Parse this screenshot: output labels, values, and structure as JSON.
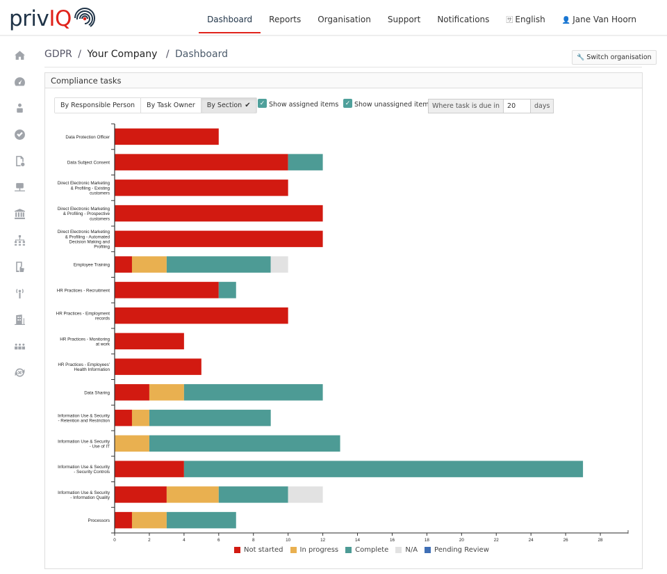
{
  "app": {
    "logo_text_1": "priv",
    "logo_text_2": "IQ"
  },
  "nav": {
    "items": [
      {
        "label": "Dashboard",
        "active": true
      },
      {
        "label": "Reports"
      },
      {
        "label": "Organisation"
      },
      {
        "label": "Support"
      },
      {
        "label": "Notifications"
      }
    ],
    "language": "English",
    "language_icon": "language-icon",
    "user": "Jane Van Hoorn",
    "user_icon": "user-icon"
  },
  "sidebar": {
    "items": [
      {
        "icon": "home-icon"
      },
      {
        "icon": "dashboard-gauge-icon"
      },
      {
        "icon": "person-id-icon"
      },
      {
        "icon": "check-circle-icon"
      },
      {
        "icon": "document-settings-icon"
      },
      {
        "icon": "network-server-icon"
      },
      {
        "icon": "institution-icon"
      },
      {
        "icon": "org-chart-icon"
      },
      {
        "icon": "tablet-touch-icon"
      },
      {
        "icon": "broadcast-tower-icon"
      },
      {
        "icon": "building-icon"
      },
      {
        "icon": "group-icon"
      },
      {
        "icon": "exchange-icon"
      }
    ]
  },
  "breadcrumb": {
    "root": "GDPR",
    "company": "Your Company",
    "current": "Dashboard",
    "separator": "/"
  },
  "switch_button": {
    "label": "Switch organisation",
    "icon": "wrench-icon"
  },
  "panel": {
    "title": "Compliance tasks",
    "group_by": {
      "options": [
        "By Responsible Person",
        "By Task Owner",
        "By Section"
      ],
      "selected": "By Section",
      "check_icon": "✔"
    },
    "show_assigned": {
      "label": "Show assigned items",
      "checked": true
    },
    "show_unassigned": {
      "label": "Show unassigned items",
      "checked": true
    },
    "due_filter": {
      "prefix": "Where task is due in",
      "value": "20",
      "suffix": "days"
    }
  },
  "chart_data": {
    "type": "bar",
    "orientation": "horizontal",
    "stacked": true,
    "title": "",
    "xlabel": "",
    "ylabel": "",
    "xlim": [
      0,
      29.6
    ],
    "x_ticks": [
      0,
      2,
      4,
      6,
      8,
      10,
      12,
      14,
      16,
      18,
      20,
      22,
      24,
      26,
      28
    ],
    "grid": false,
    "legend_position": "bottom",
    "categories": [
      "Data Protection Officer",
      "Data Subject Consent",
      "Direct Electronic Marketing & Profiling - Existing customers",
      "Direct Electronic Marketing & Profiling - Prospective customers",
      "Direct Electronic Marketing & Profiling - Automated Decision Making and Profiling",
      "Employee Training",
      "HR Practices - Recruitment",
      "HR Practices - Employment records",
      "HR Practices - Monitoring at work",
      "HR Practices - Employees' Health Information",
      "Data Sharing",
      "Information Use & Security - Retention and Restriction",
      "Information Use & Security - Use of IT",
      "Information Use & Security - Security Controls",
      "Information Use & Security - Information Quality",
      "Processors"
    ],
    "category_lines": [
      [
        "Data Protection Officer"
      ],
      [
        "Data Subject Consent"
      ],
      [
        "Direct Electronic Marketing",
        "& Profiling - Existing",
        "customers"
      ],
      [
        "Direct Electronic Marketing",
        "& Profiling - Prospective",
        "customers"
      ],
      [
        "Direct Electronic Marketing",
        "& Profiling - Automated",
        "Decision Making and",
        "Profiling"
      ],
      [
        "Employee Training"
      ],
      [
        "HR Practices - Recruitment"
      ],
      [
        "HR Practices - Employment",
        "records"
      ],
      [
        "HR Practices - Monitoring",
        "at work"
      ],
      [
        "HR Practices - Employees'",
        "Health Information"
      ],
      [
        "Data Sharing"
      ],
      [
        "Information Use & Security",
        "- Retention and Restriction"
      ],
      [
        "Information Use & Security",
        "- Use of IT"
      ],
      [
        "Information Use & Security",
        "- Security Controls"
      ],
      [
        "Information Use & Security",
        "- Information Quality"
      ],
      [
        "Processors"
      ]
    ],
    "series": [
      {
        "name": "Not started",
        "color": "#d21a11",
        "values": [
          6,
          10,
          10,
          12,
          12,
          1,
          6,
          10,
          4,
          5,
          2,
          1,
          0,
          4,
          3,
          1
        ]
      },
      {
        "name": "In progress",
        "color": "#e9b050",
        "values": [
          0,
          0,
          0,
          0,
          0,
          2,
          0,
          0,
          0,
          0,
          2,
          1,
          2,
          0,
          3,
          2
        ]
      },
      {
        "name": "Complete",
        "color": "#4d9b95",
        "values": [
          0,
          2,
          0,
          0,
          0,
          6,
          1,
          0,
          0,
          0,
          8,
          7,
          11,
          23,
          4,
          4
        ]
      },
      {
        "name": "N/A",
        "color": "#e2e2e2",
        "values": [
          0,
          0,
          0,
          0,
          0,
          1,
          0,
          0,
          0,
          0,
          0,
          0,
          0,
          0,
          2,
          0
        ]
      },
      {
        "name": "Pending Review",
        "color": "#3f6fb5",
        "values": [
          0,
          0,
          0,
          0,
          0,
          0,
          0,
          0,
          0,
          0,
          0,
          0,
          0,
          0,
          0,
          0
        ]
      }
    ]
  }
}
